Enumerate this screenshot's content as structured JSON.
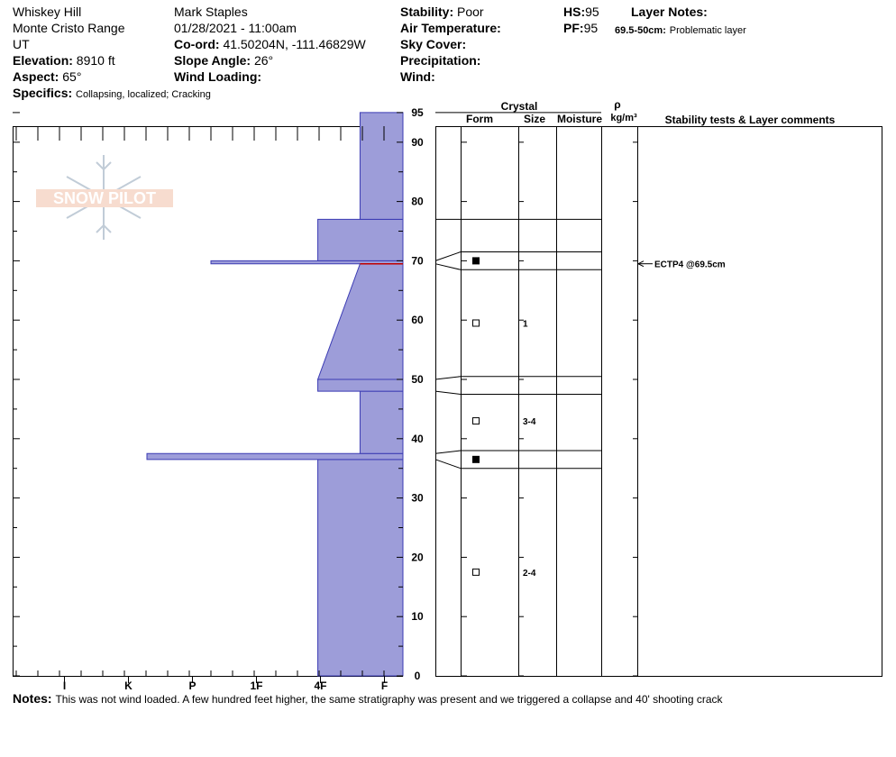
{
  "header": {
    "location": "Whiskey Hill",
    "range": "Monte Cristo Range",
    "state": "UT",
    "elevation_label": "Elevation:",
    "elevation": "8910 ft",
    "aspect_label": "Aspect:",
    "aspect": "65°",
    "specifics_label": "Specifics:",
    "specifics": "Collapsing, localized;  Cracking",
    "observer": "Mark Staples",
    "datetime": "01/28/2021 - 11:00am",
    "coord_label": "Co-ord:",
    "coord": "41.50204N, -111.46829W",
    "slope_label": "Slope Angle:",
    "slope": "26°",
    "wind_loading_label": "Wind Loading:",
    "stability_label": "Stability:",
    "stability": "Poor",
    "air_temp_label": "Air Temperature:",
    "sky_cover_label": "Sky Cover:",
    "precip_label": "Precipitation:",
    "wind_label": "Wind:",
    "hs_label": "HS:",
    "hs": "95",
    "pf_label": "PF:",
    "pf": "95",
    "layer_notes_label": "Layer Notes:",
    "layer_note_range": "69.5-50cm:",
    "layer_note_text": "Problematic layer"
  },
  "logo_text": "SNOW PILOT",
  "notes": {
    "label": "Notes:",
    "text": "This was not wind loaded. A few hundred feet higher, the same stratigraphy was present and we triggered a collapse and 40' shooting crack"
  },
  "columns": {
    "crystal": "Crystal",
    "form": "Form",
    "size": "Size",
    "moisture": "Moisture",
    "rho": "ρ",
    "density_unit": "kg/m³",
    "stability": "Stability tests & Layer comments"
  },
  "colors": {
    "fill": "#9d9dd9",
    "edge": "#3c3cb4",
    "red": "#c00000"
  },
  "chart_data": {
    "type": "snow-profile",
    "hardness_axis": [
      "I",
      "K",
      "P",
      "1F",
      "4F",
      "F"
    ],
    "height_range": [
      0,
      95
    ],
    "height_ticks": [
      0,
      10,
      20,
      30,
      40,
      50,
      60,
      70,
      80,
      90,
      95
    ],
    "hardness_profile": [
      {
        "bottom": 0,
        "top": 36.5,
        "h0": 1.33,
        "h1": 1.33
      },
      {
        "bottom": 36.5,
        "top": 37.5,
        "h0": 4.0,
        "h1": 4.0
      },
      {
        "bottom": 37.5,
        "top": 48,
        "h0": 0.67,
        "h1": 0.67
      },
      {
        "bottom": 48,
        "top": 50,
        "h0": 1.33,
        "h1": 1.33
      },
      {
        "bottom": 50,
        "top": 69.5,
        "h0": 0.67,
        "h1": 0.67
      },
      {
        "bottom": 50,
        "top": 69.5,
        "h0": 1.33,
        "h1": 0.67
      },
      {
        "bottom": 69.5,
        "top": 70,
        "h0": 3.0,
        "h1": 3.0
      },
      {
        "bottom": 70,
        "top": 77,
        "h0": 1.33,
        "h1": 1.33
      },
      {
        "bottom": 77,
        "top": 95,
        "h0": 0.67,
        "h1": 0.67
      }
    ],
    "red_marker_height": 69.5,
    "layer_boundaries": [
      95,
      77,
      71.5,
      68.5,
      50.5,
      47.5,
      38,
      35
    ],
    "grain_markers": [
      {
        "height": 70,
        "filled": true,
        "size": ""
      },
      {
        "height": 59.5,
        "filled": false,
        "size": "1"
      },
      {
        "height": 43,
        "filled": false,
        "size": "3-4"
      },
      {
        "height": 36.5,
        "filled": true,
        "size": ""
      },
      {
        "height": 17.5,
        "filled": false,
        "size": "2-4"
      }
    ],
    "stability_tests": [
      {
        "height": 69.5,
        "label": "ECTP4 @69.5cm"
      }
    ]
  }
}
